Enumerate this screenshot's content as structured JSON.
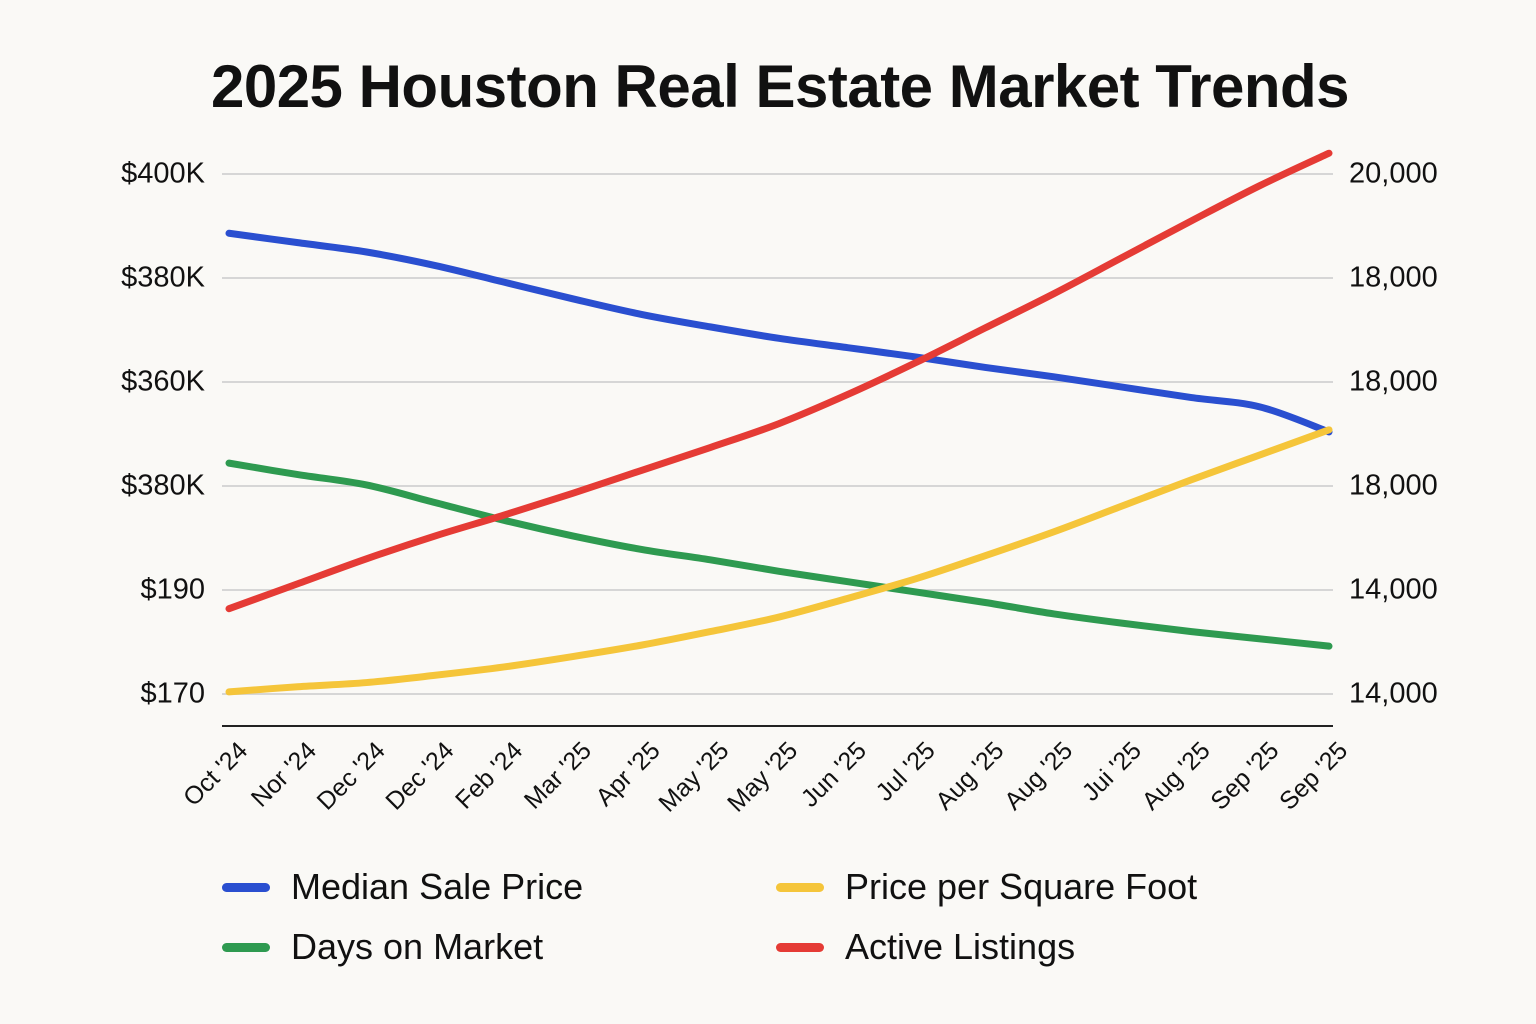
{
  "chart_data": {
    "type": "line",
    "title": "2025 Houston Real Estate Market Trends",
    "xlabel": "",
    "ylabel": "",
    "grid": true,
    "legend_position": "bottom",
    "categories": [
      "Oct '24",
      "Nor '24",
      "Dec '24",
      "Dec '24",
      "Feb '24",
      "Mar '25",
      "Apr '25",
      "May '25",
      "May '25",
      "Jun '25",
      "Jul '25",
      "Aug '25",
      "Aug '25",
      "Jui '25",
      "Aug '25",
      "Sep '25",
      "Sep '25"
    ],
    "left_axis": {
      "tick_labels": [
        "$170",
        "$190",
        "$380K",
        "$360K",
        "$380K",
        "$400K"
      ],
      "note": "tick labels as printed (bottom to top); ticks evenly spaced, values given in grid-step units 0–5"
    },
    "right_axis": {
      "tick_labels": [
        "14,000",
        "14,000",
        "18,000",
        "18,000",
        "18,000",
        "20,000"
      ],
      "note": "tick labels as printed (bottom to top)"
    },
    "value_units": "grid steps above bottom gridline (0 = $170 / 14,000 line, 5 = $400K / 20,000 line)",
    "ylim": [
      -0.31,
      5
    ],
    "series": [
      {
        "name": "Median Sale Price",
        "color": "#2a4fd0",
        "axis": "left",
        "values": [
          4.43,
          4.34,
          4.25,
          4.12,
          3.96,
          3.8,
          3.65,
          3.53,
          3.42,
          3.33,
          3.24,
          3.14,
          3.05,
          2.95,
          2.85,
          2.76,
          2.52
        ]
      },
      {
        "name": "Days on Market",
        "color": "#2e9a50",
        "axis": "left",
        "values": [
          2.22,
          2.11,
          2.01,
          1.84,
          1.67,
          1.52,
          1.39,
          1.29,
          1.18,
          1.08,
          0.98,
          0.88,
          0.77,
          0.68,
          0.6,
          0.53,
          0.46
        ]
      },
      {
        "name": "Price per Square Foot",
        "color": "#f5c53a",
        "axis": "right",
        "values": [
          0.02,
          0.07,
          0.11,
          0.18,
          0.26,
          0.36,
          0.47,
          0.6,
          0.74,
          0.92,
          1.11,
          1.33,
          1.56,
          1.81,
          2.06,
          2.3,
          2.54
        ]
      },
      {
        "name": "Active Listings",
        "color": "#e53b35",
        "axis": "right",
        "values": [
          0.82,
          1.06,
          1.3,
          1.52,
          1.72,
          1.93,
          2.15,
          2.37,
          2.6,
          2.88,
          3.19,
          3.52,
          3.85,
          4.2,
          4.55,
          4.89,
          5.2
        ]
      }
    ]
  },
  "legend": {
    "items": [
      {
        "label": "Median Sale Price",
        "color": "#2a4fd0"
      },
      {
        "label": "Price per Square Foot",
        "color": "#f5c53a"
      },
      {
        "label": "Days on Market",
        "color": "#2e9a50"
      },
      {
        "label": "Active Listings",
        "color": "#e53b35"
      }
    ]
  }
}
